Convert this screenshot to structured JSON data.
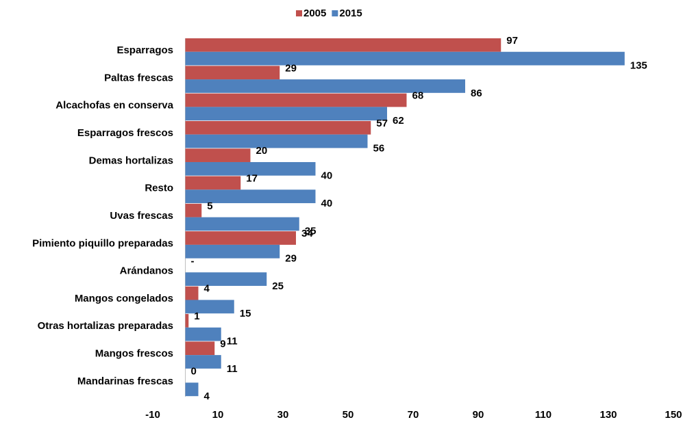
{
  "chart_data": {
    "type": "hbar",
    "categories": [
      "Esparragos",
      "Paltas frescas",
      "Alcachofas en conserva",
      "Esparragos frescos",
      "Demas hortalizas",
      "Resto",
      "Uvas frescas",
      "Pimiento piquillo preparadas",
      "Arándanos",
      "Mangos congelados",
      "Otras hortalizas preparadas",
      "Mangos frescos",
      "Mandarinas frescas"
    ],
    "series": [
      {
        "name": "2005",
        "color": "#c0504d",
        "values": [
          97,
          29,
          68,
          57,
          20,
          17,
          5,
          34,
          null,
          4,
          1,
          9,
          0
        ],
        "value_labels": [
          "97",
          "29",
          "68",
          "57",
          "20",
          "17",
          "5",
          "34",
          "-",
          "4",
          "1",
          "9",
          "0"
        ]
      },
      {
        "name": "2015",
        "color": "#4f81bd",
        "values": [
          135,
          86,
          62,
          56,
          40,
          40,
          35,
          29,
          25,
          15,
          11,
          11,
          4
        ]
      }
    ],
    "xlim": [
      -10,
      150
    ],
    "xticks": [
      -10,
      10,
      30,
      50,
      70,
      90,
      110,
      130,
      150
    ],
    "legend": "top"
  }
}
